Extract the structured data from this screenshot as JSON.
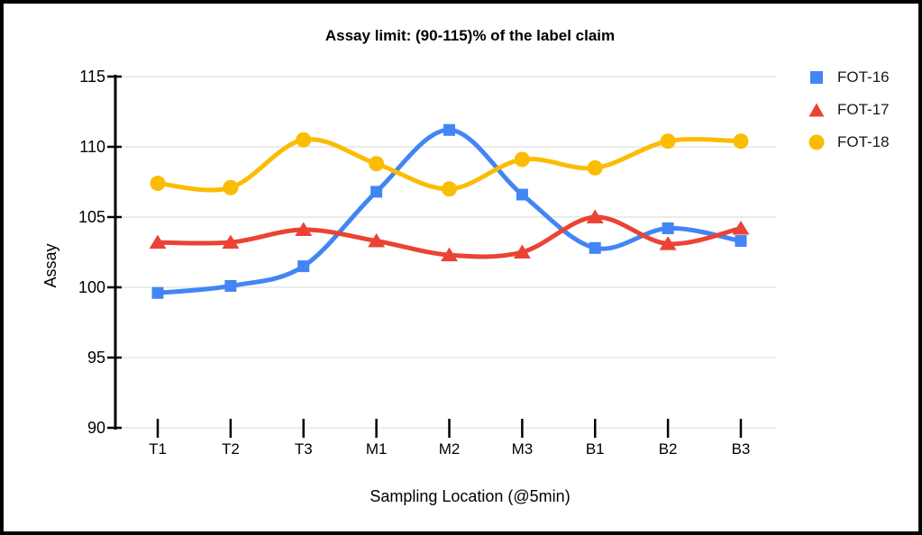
{
  "page": {
    "background_color": "#FFFFFF",
    "border_color": "#000000"
  },
  "chart_data": {
    "type": "line",
    "title": "Assay limit: (90-115)% of the label claim",
    "xlabel": "Sampling Location (@5min)",
    "ylabel": "Assay",
    "categories": [
      "T1",
      "T2",
      "T3",
      "M1",
      "M2",
      "M3",
      "B1",
      "B2",
      "B3"
    ],
    "ylim": [
      90,
      115
    ],
    "yticks": [
      90,
      95,
      100,
      105,
      110,
      115
    ],
    "grid": true,
    "line_style": "smooth",
    "legend_position": "right",
    "axis_color": "#000000",
    "gridline_color": "#E0E0E0",
    "series": [
      {
        "name": "FOT-16",
        "color": "#4285F4",
        "marker": "square",
        "values": [
          99.6,
          100.1,
          101.5,
          106.8,
          111.2,
          106.6,
          102.8,
          104.2,
          103.3
        ]
      },
      {
        "name": "FOT-17",
        "color": "#EA4335",
        "marker": "triangle",
        "values": [
          103.2,
          103.2,
          104.1,
          103.3,
          102.3,
          102.5,
          105.0,
          103.1,
          104.2
        ]
      },
      {
        "name": "FOT-18",
        "color": "#FBBC04",
        "marker": "circle",
        "values": [
          107.4,
          107.1,
          110.5,
          108.8,
          107.0,
          109.1,
          108.5,
          110.4,
          110.4
        ]
      }
    ]
  }
}
